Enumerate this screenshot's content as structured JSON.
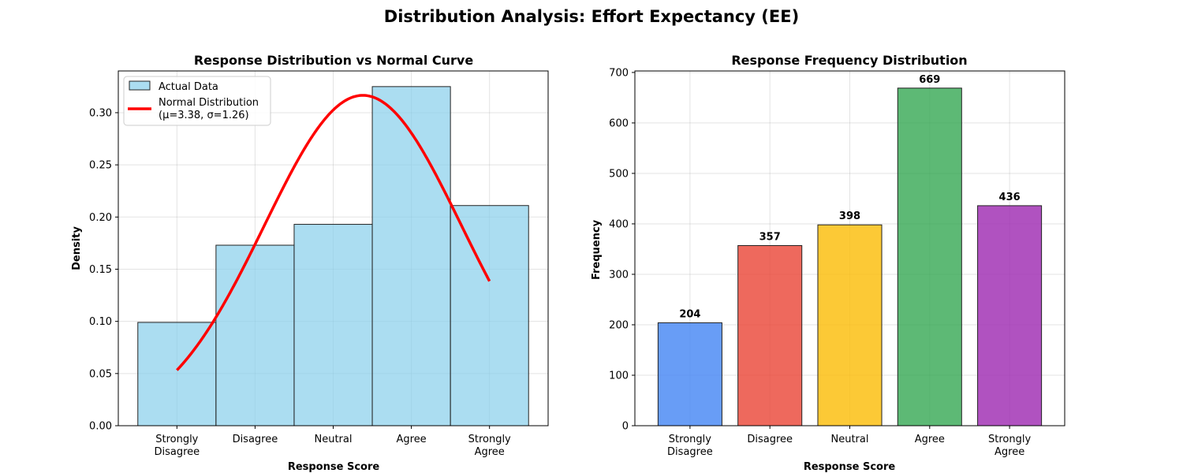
{
  "figure": {
    "title": "Distribution Analysis: Effort Expectancy (EE)"
  },
  "chart_data": [
    {
      "type": "bar",
      "title": "Response Distribution vs Normal Curve",
      "xlabel": "Response Score",
      "ylabel": "Density",
      "categories": [
        "Strongly\nDisagree",
        "Disagree",
        "Neutral",
        "Agree",
        "Strongly\nAgree"
      ],
      "x": [
        1,
        2,
        3,
        4,
        5
      ],
      "values": [
        0.099,
        0.173,
        0.193,
        0.325,
        0.211
      ],
      "xlim": [
        0.25,
        5.75
      ],
      "ylim": [
        0,
        0.34
      ],
      "yticks": [
        "0.00",
        "0.05",
        "0.10",
        "0.15",
        "0.20",
        "0.25",
        "0.30"
      ],
      "grid": true,
      "legend": {
        "placement": "top-left",
        "entries": [
          "Actual Data",
          "Normal Distribution\n(μ=3.38, σ=1.26)"
        ]
      },
      "curve": {
        "mu": 3.38,
        "sigma": 1.26,
        "x_range": [
          1,
          5
        ]
      },
      "colors": {
        "bars": "#87ceeb",
        "edge": "#222222",
        "curve": "#ff0000"
      }
    },
    {
      "type": "bar",
      "title": "Response Frequency Distribution",
      "xlabel": "Response Score",
      "ylabel": "Frequency",
      "categories": [
        "Strongly\nDisagree",
        "Disagree",
        "Neutral",
        "Agree",
        "Strongly\nAgree"
      ],
      "values": [
        204,
        357,
        398,
        669,
        436
      ],
      "data_labels": [
        "204",
        "357",
        "398",
        "669",
        "436"
      ],
      "ylim": [
        0,
        703
      ],
      "yticks": [
        "0",
        "100",
        "200",
        "300",
        "400",
        "500",
        "600",
        "700"
      ],
      "grid": true,
      "colors": {
        "bars": [
          "#4285f4",
          "#ea4335",
          "#fbbc04",
          "#34a853",
          "#9c27b0"
        ],
        "edge": "#222222"
      }
    }
  ]
}
